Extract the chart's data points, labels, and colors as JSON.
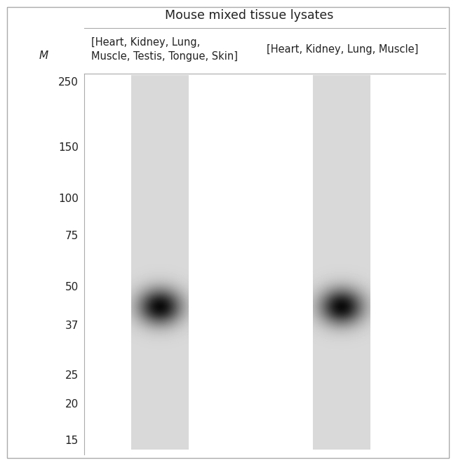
{
  "title": "Mouse mixed tissue lysates",
  "col1_label_line1": "[Heart, Kidney, Lung,",
  "col1_label_line2": "Muscle, Testis, Tongue, Skin]",
  "col2_label": "[Heart, Kidney, Lung, Muscle]",
  "m_label": "M",
  "marker_labels": [
    250,
    150,
    100,
    75,
    50,
    37,
    25,
    20,
    15
  ],
  "lane_color": "#d9d9d9",
  "background_color": "#ffffff",
  "title_fontsize": 12.5,
  "label_fontsize": 10.5,
  "marker_fontsize": 11,
  "m_fontsize": 11,
  "band_mw": 43,
  "outer_border_color": "#aaaaaa",
  "line_color": "#aaaaaa"
}
